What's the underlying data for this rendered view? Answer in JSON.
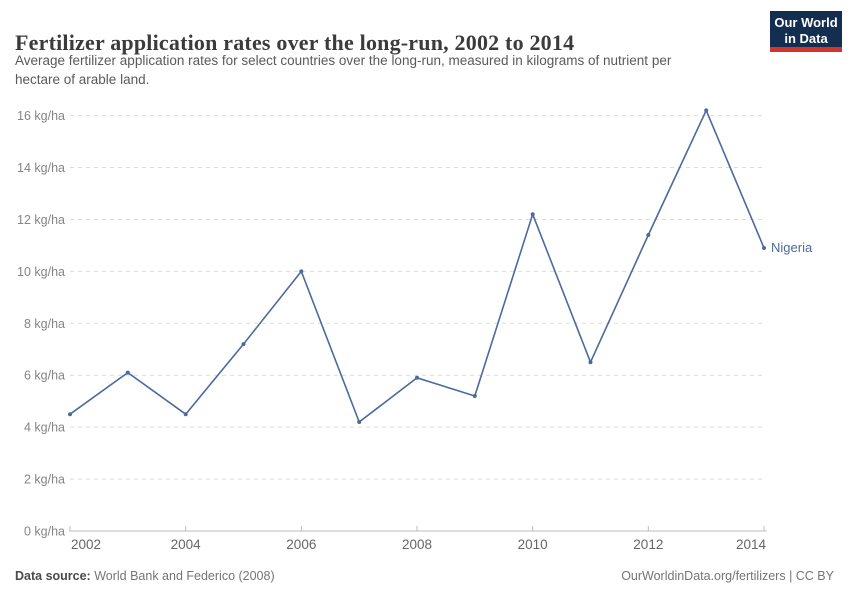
{
  "header": {
    "title": "Fertilizer application rates over the long-run, 2002 to 2014",
    "subtitle_line1": "Average fertilizer application rates for select countries over the long-run, measured in kilograms of nutrient per",
    "subtitle_line2": "hectare of arable land.",
    "logo": {
      "line1": "Our World",
      "line2": "in Data",
      "bg_color": "#132e51",
      "stripe_color": "#cf372e",
      "text_color": "#ffffff"
    }
  },
  "chart_data": {
    "type": "line",
    "title": "Fertilizer application rates over the long-run, 2002 to 2014",
    "xlabel": "",
    "ylabel": "kg/ha",
    "x": [
      2002,
      2003,
      2004,
      2005,
      2006,
      2007,
      2008,
      2009,
      2010,
      2011,
      2012,
      2013,
      2014
    ],
    "series": [
      {
        "name": "Nigeria",
        "color": "#4C6A9C",
        "values": [
          4.5,
          6.1,
          4.5,
          7.2,
          10.0,
          4.2,
          5.9,
          5.2,
          12.2,
          6.5,
          11.4,
          16.2,
          10.9
        ]
      }
    ],
    "ylim": [
      0,
      16
    ],
    "xlim": [
      2002,
      2014
    ],
    "y_ticks": [
      {
        "value": 0,
        "label": "0 kg/ha"
      },
      {
        "value": 2,
        "label": "2 kg/ha"
      },
      {
        "value": 4,
        "label": "4 kg/ha"
      },
      {
        "value": 6,
        "label": "6 kg/ha"
      },
      {
        "value": 8,
        "label": "8 kg/ha"
      },
      {
        "value": 10,
        "label": "10 kg/ha"
      },
      {
        "value": 12,
        "label": "12 kg/ha"
      },
      {
        "value": 14,
        "label": "14 kg/ha"
      },
      {
        "value": 16,
        "label": "16 kg/ha"
      }
    ],
    "x_tick_labels": [
      "2002",
      "2004",
      "2006",
      "2008",
      "2010",
      "2012",
      "2014"
    ],
    "grid": "horizontal-dashed",
    "grid_color": "#dcdcdc",
    "axis_color": "#bdbdbd",
    "y_tick_label_color": "#858585",
    "x_tick_label_color": "#666666",
    "legend_position": "end-of-line-label",
    "end_label": "Nigeria"
  },
  "footer": {
    "source_label": "Data source:",
    "source_value": " World Bank and Federico (2008)",
    "credit": "OurWorldinData.org/fertilizers | CC BY"
  }
}
